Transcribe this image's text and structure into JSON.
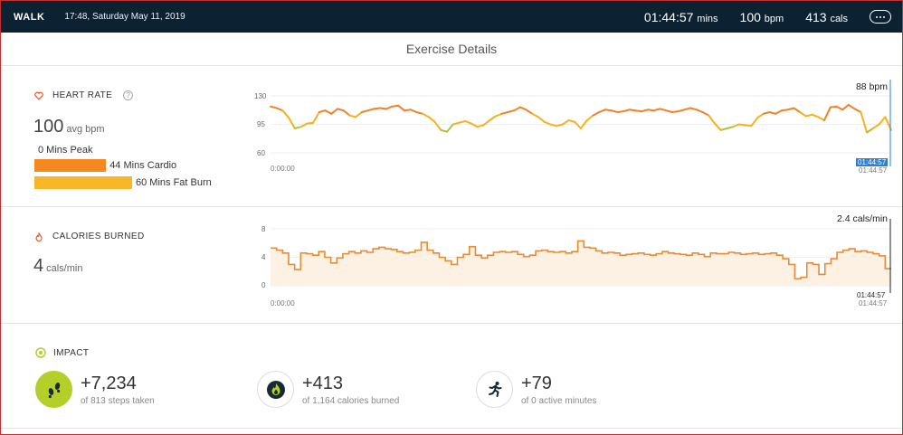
{
  "header": {
    "activity_type": "WALK",
    "datetime": "17:48, Saturday May 11, 2019",
    "duration": "01:44:57",
    "duration_unit": "mins",
    "avg_bpm": "100",
    "bpm_unit": "bpm",
    "calories": "413",
    "cal_unit": "cals",
    "more_icon": "more-options-icon"
  },
  "page_title": "Exercise Details",
  "heart_rate": {
    "label": "HEART RATE",
    "help": "?",
    "value": "100",
    "unit": "avg bpm",
    "zones": [
      {
        "label": "0 Mins Peak",
        "minutes": 0,
        "color": "#e8552d"
      },
      {
        "label": "44 Mins Cardio",
        "minutes": 44,
        "color": "#f5891f"
      },
      {
        "label": "60 Mins Fat Burn",
        "minutes": 60,
        "color": "#f7b726"
      }
    ],
    "end_value": "88 bpm",
    "start_time": "0:00:00",
    "end_time": "01:44:57",
    "cursor_time": "01:44:57"
  },
  "calories": {
    "label": "CALORIES BURNED",
    "value": "4",
    "unit": "cals/min",
    "end_value": "2.4 cals/min",
    "start_time": "0:00:00",
    "end_time": "01:44:57",
    "cursor_time": "01:44:57"
  },
  "impact": {
    "label": "IMPACT",
    "items": [
      {
        "value": "+7,234",
        "sub": "of 813 steps taken",
        "icon": "footsteps-icon"
      },
      {
        "value": "+413",
        "sub": "of 1,164 calories burned",
        "icon": "flame-icon"
      },
      {
        "value": "+79",
        "sub": "of 0 active minutes",
        "icon": "running-person-icon"
      }
    ]
  },
  "chart_data": [
    {
      "type": "line",
      "title": "HEART RATE",
      "y_ticks": [
        130,
        95,
        60
      ],
      "ylim": [
        60,
        130
      ],
      "x_start": "0:00:00",
      "x_end": "01:44:57",
      "series": [
        {
          "values": [
            117,
            115,
            112,
            103,
            90,
            92,
            96,
            97,
            110,
            112,
            108,
            114,
            112,
            106,
            104,
            110,
            112,
            114,
            115,
            114,
            117,
            118,
            112,
            113,
            110,
            108,
            104,
            98,
            88,
            86,
            95,
            97,
            99,
            96,
            92,
            94,
            100,
            105,
            108,
            110,
            112,
            116,
            113,
            108,
            104,
            98,
            95,
            93,
            95,
            100,
            98,
            90,
            100,
            106,
            110,
            113,
            112,
            110,
            111,
            113,
            112,
            111,
            113,
            112,
            114,
            112,
            110,
            111,
            113,
            115,
            113,
            110,
            106,
            96,
            88,
            90,
            92,
            95,
            94,
            93,
            103,
            108,
            110,
            108,
            112,
            113,
            115,
            110,
            105,
            107,
            104,
            100,
            116,
            117,
            113,
            119,
            114,
            110,
            85,
            90,
            95,
            104,
            88
          ]
        }
      ]
    },
    {
      "type": "area",
      "title": "CALORIES BURNED",
      "y_ticks": [
        8,
        4,
        0
      ],
      "ylim": [
        0,
        8
      ],
      "x_start": "0:00:00",
      "x_end": "01:44:57",
      "series": [
        {
          "values": [
            5.3,
            5.0,
            4.6,
            3.0,
            2.3,
            4.6,
            4.5,
            4.3,
            4.8,
            4.0,
            3.2,
            3.9,
            4.5,
            4.8,
            4.6,
            4.9,
            4.7,
            5.2,
            5.4,
            5.2,
            5.1,
            4.8,
            4.6,
            4.7,
            5.0,
            6.1,
            5.0,
            4.6,
            4.0,
            3.5,
            3.0,
            4.0,
            4.4,
            5.5,
            4.3,
            3.9,
            4.3,
            4.7,
            4.8,
            4.7,
            4.8,
            4.4,
            4.1,
            4.3,
            4.9,
            5.0,
            4.8,
            4.7,
            4.8,
            4.6,
            4.8,
            6.3,
            5.4,
            5.3,
            4.9,
            4.6,
            4.7,
            4.6,
            4.3,
            4.4,
            4.5,
            4.6,
            4.4,
            4.3,
            4.5,
            4.8,
            4.6,
            4.5,
            4.4,
            4.3,
            4.6,
            4.4,
            4.1,
            4.6,
            4.5,
            4.5,
            4.7,
            4.6,
            4.4,
            4.5,
            4.6,
            4.4,
            4.5,
            4.6,
            4.3,
            3.8,
            3.0,
            1.0,
            1.2,
            3.2,
            3.0,
            1.6,
            3.1,
            3.8,
            4.7,
            5.0,
            5.2,
            4.8,
            4.9,
            4.7,
            4.5,
            4.2,
            2.4
          ]
        }
      ]
    }
  ]
}
